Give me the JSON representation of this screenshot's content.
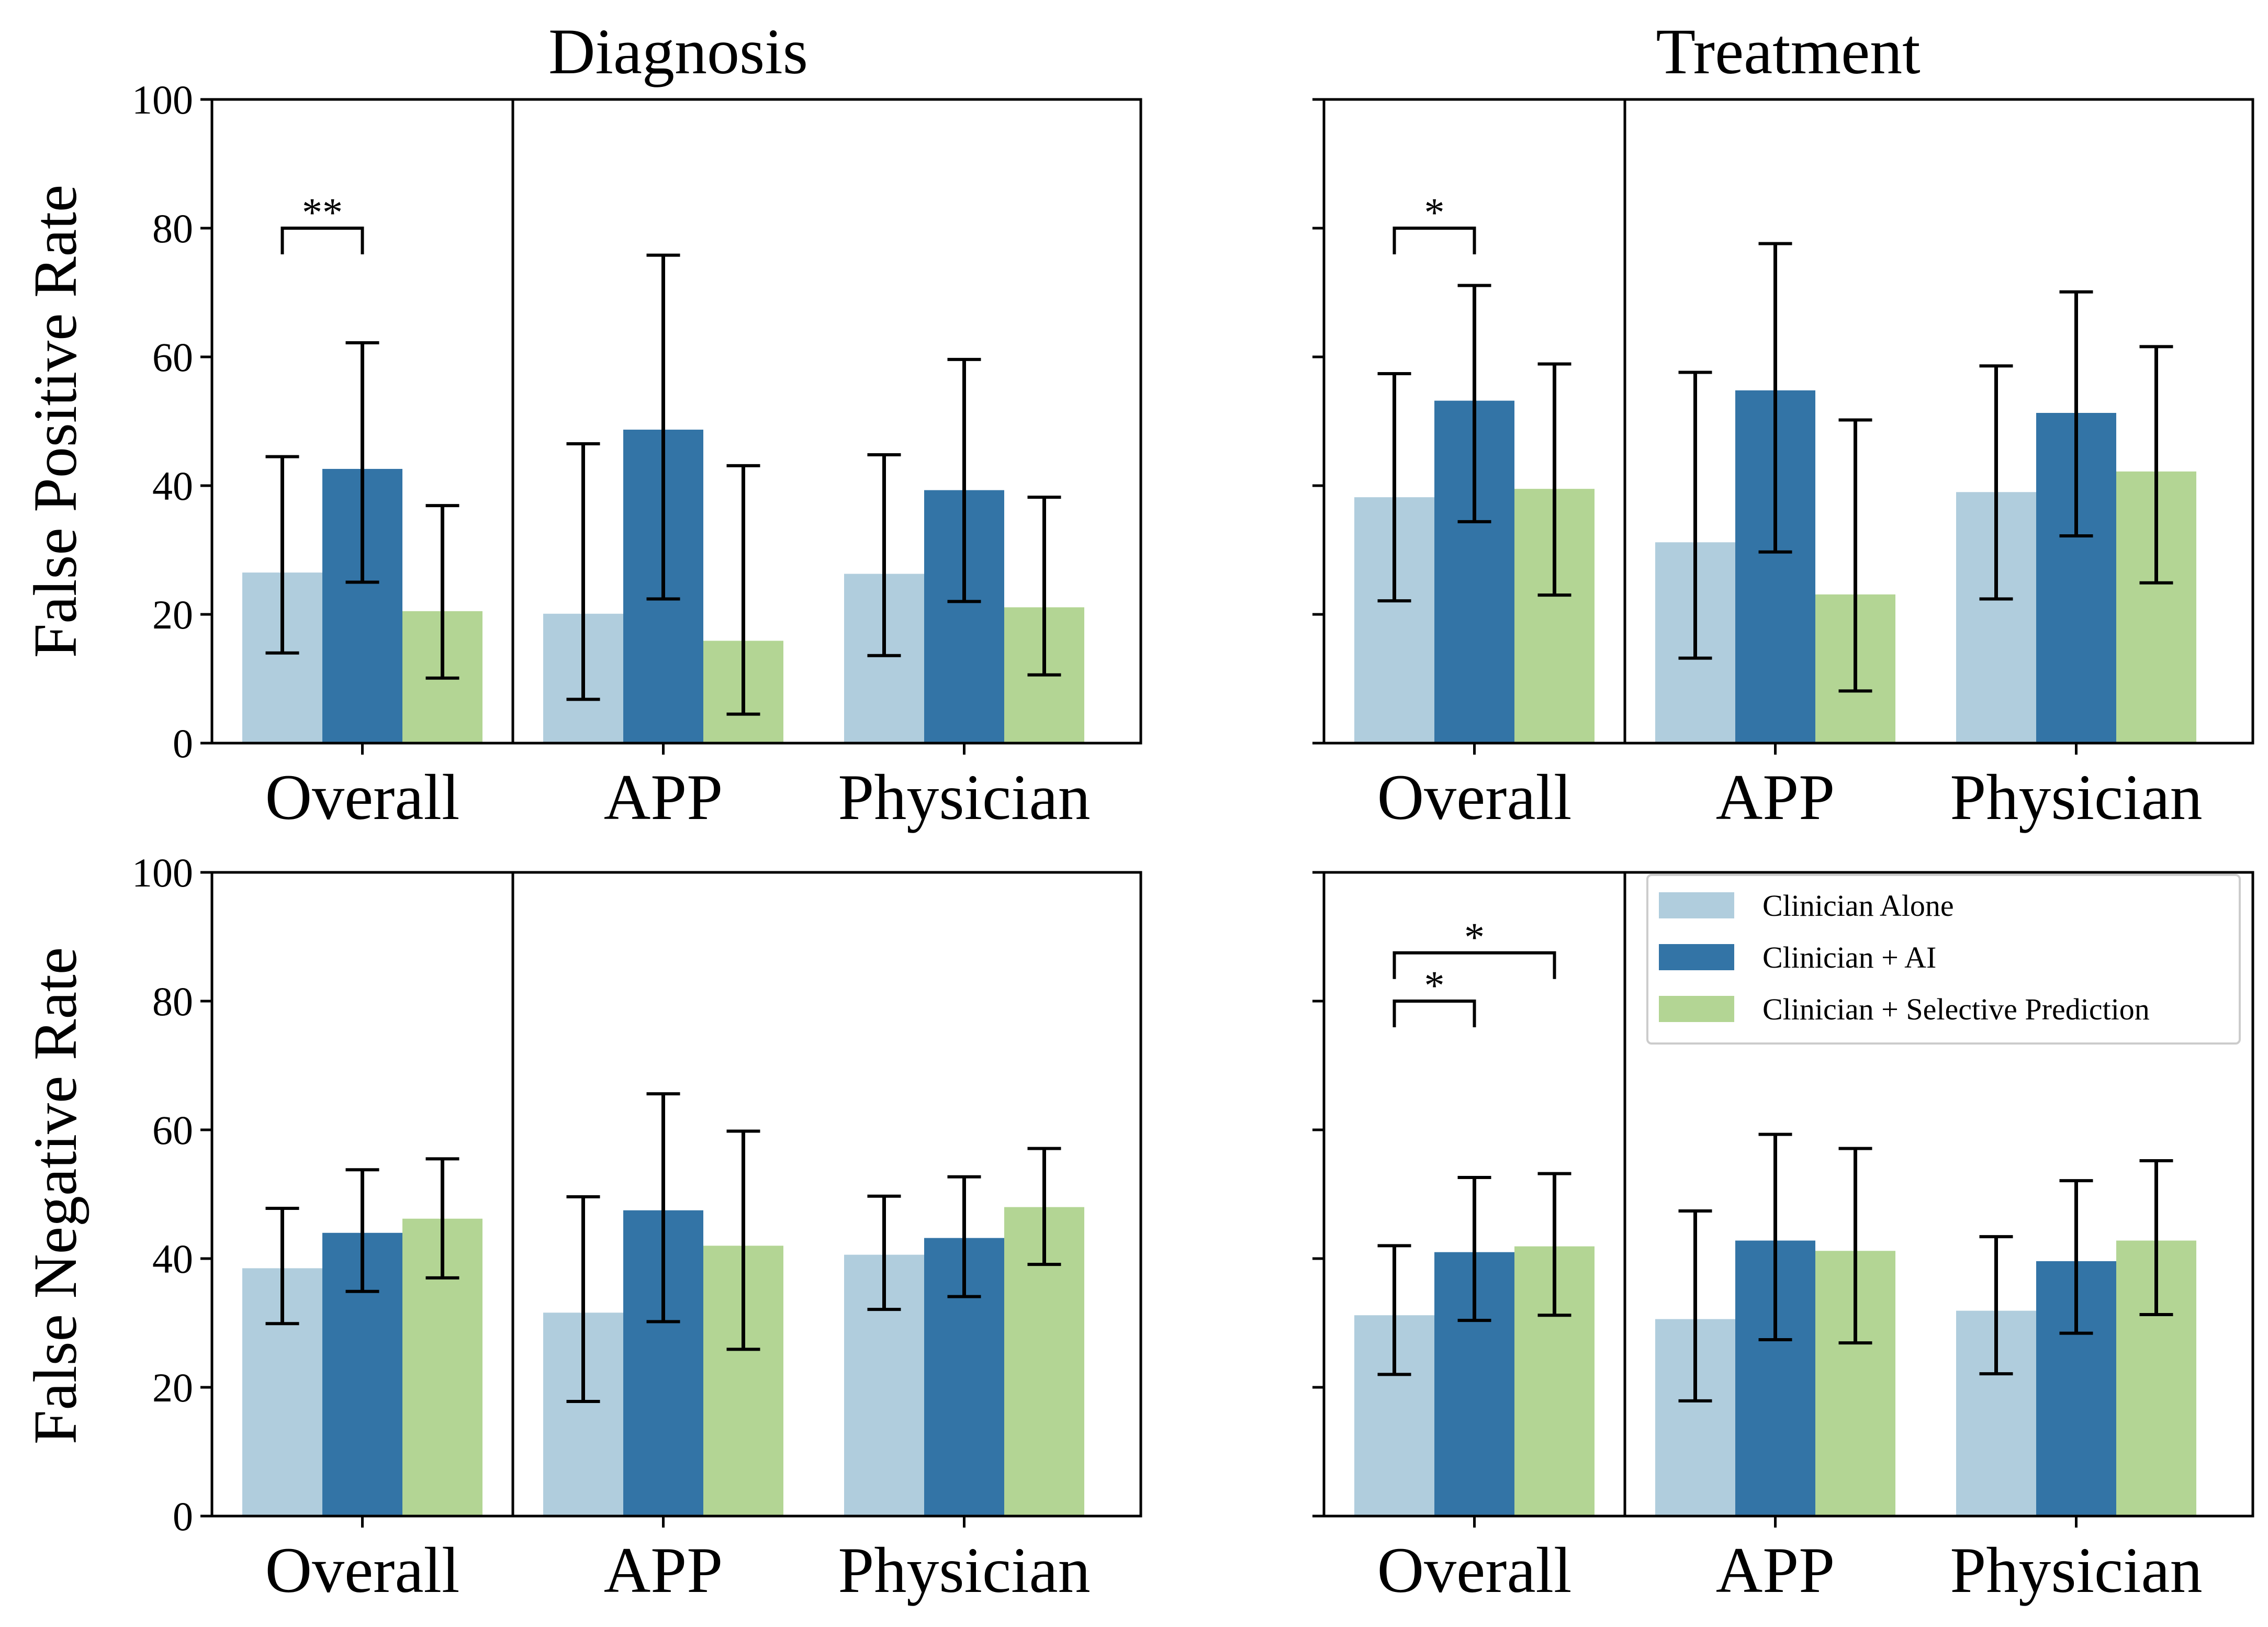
{
  "chart_data": {
    "type": "bar",
    "column_titles": [
      "Diagnosis",
      "Treatment"
    ],
    "row_labels": [
      "False Positive Rate",
      "False Negative Rate"
    ],
    "categories": [
      "Overall",
      "APP",
      "Physician"
    ],
    "ylim": [
      0,
      100
    ],
    "yticks": [
      "0",
      "20",
      "40",
      "60",
      "80",
      "100"
    ],
    "colors": [
      "#b0cddd",
      "#3374a6",
      "#b3d594"
    ],
    "legend": {
      "position": "upper right of bottom-right panel",
      "entries": [
        "Clinician Alone",
        "Clinician + AI",
        "Clinician + Selective Prediction"
      ]
    },
    "panels": [
      {
        "id": "fpr-diagnosis",
        "row": 0,
        "col": 0,
        "series": [
          {
            "name": "Clinician Alone",
            "values": [
              26.5,
              20.1,
              26.3
            ],
            "err_low": [
              14.0,
              6.8,
              13.6
            ],
            "err_high": [
              44.5,
              46.5,
              44.8
            ]
          },
          {
            "name": "Clinician + AI",
            "values": [
              42.6,
              48.7,
              39.3
            ],
            "err_low": [
              25.0,
              22.4,
              22.0
            ],
            "err_high": [
              62.2,
              75.8,
              59.6
            ]
          },
          {
            "name": "Clinician + Selective Prediction",
            "values": [
              20.5,
              15.9,
              21.1
            ],
            "err_low": [
              10.1,
              4.5,
              10.6
            ],
            "err_high": [
              36.9,
              43.1,
              38.2
            ]
          }
        ],
        "significance": [
          {
            "label": "**",
            "category": "Overall",
            "from": 0,
            "to": 1,
            "level": 80
          }
        ]
      },
      {
        "id": "fpr-treatment",
        "row": 0,
        "col": 1,
        "series": [
          {
            "name": "Clinician Alone",
            "values": [
              38.2,
              31.2,
              39.0
            ],
            "err_low": [
              22.1,
              13.2,
              22.4
            ],
            "err_high": [
              57.4,
              57.6,
              58.6
            ]
          },
          {
            "name": "Clinician + AI",
            "values": [
              53.2,
              54.8,
              51.3
            ],
            "err_low": [
              34.4,
              29.7,
              32.2
            ],
            "err_high": [
              71.1,
              77.6,
              70.1
            ]
          },
          {
            "name": "Clinician + Selective Prediction",
            "values": [
              39.5,
              23.1,
              42.2
            ],
            "err_low": [
              23.0,
              8.1,
              24.9
            ],
            "err_high": [
              58.9,
              50.2,
              61.6
            ]
          }
        ],
        "significance": [
          {
            "label": "*",
            "category": "Overall",
            "from": 0,
            "to": 1,
            "level": 80
          }
        ]
      },
      {
        "id": "fnr-diagnosis",
        "row": 1,
        "col": 0,
        "series": [
          {
            "name": "Clinician Alone",
            "values": [
              38.5,
              31.6,
              40.6
            ],
            "err_low": [
              29.9,
              17.8,
              32.1
            ],
            "err_high": [
              47.8,
              49.6,
              49.7
            ]
          },
          {
            "name": "Clinician + AI",
            "values": [
              44.0,
              47.5,
              43.2
            ],
            "err_low": [
              34.9,
              30.2,
              34.1
            ],
            "err_high": [
              53.8,
              65.6,
              52.7
            ]
          },
          {
            "name": "Clinician + Selective Prediction",
            "values": [
              46.2,
              42.0,
              48.0
            ],
            "err_low": [
              37.0,
              25.9,
              39.1
            ],
            "err_high": [
              55.5,
              59.8,
              57.1
            ]
          }
        ],
        "significance": []
      },
      {
        "id": "fnr-treatment",
        "row": 1,
        "col": 1,
        "series": [
          {
            "name": "Clinician Alone",
            "values": [
              31.2,
              30.6,
              31.9
            ],
            "err_low": [
              22.0,
              17.9,
              22.1
            ],
            "err_high": [
              42.0,
              47.4,
              43.4
            ]
          },
          {
            "name": "Clinician + AI",
            "values": [
              41.0,
              42.8,
              39.6
            ],
            "err_low": [
              30.4,
              27.4,
              28.4
            ],
            "err_high": [
              52.6,
              59.3,
              52.1
            ]
          },
          {
            "name": "Clinician + Selective Prediction",
            "values": [
              41.9,
              41.2,
              42.8
            ],
            "err_low": [
              31.2,
              26.9,
              31.3
            ],
            "err_high": [
              53.2,
              57.1,
              55.2
            ]
          }
        ],
        "significance": [
          {
            "label": "*",
            "category": "Overall",
            "from": 0,
            "to": 1,
            "level": 80
          },
          {
            "label": "*",
            "category": "Overall",
            "from": 0,
            "to": 2,
            "level": 87.5
          }
        ]
      }
    ]
  }
}
